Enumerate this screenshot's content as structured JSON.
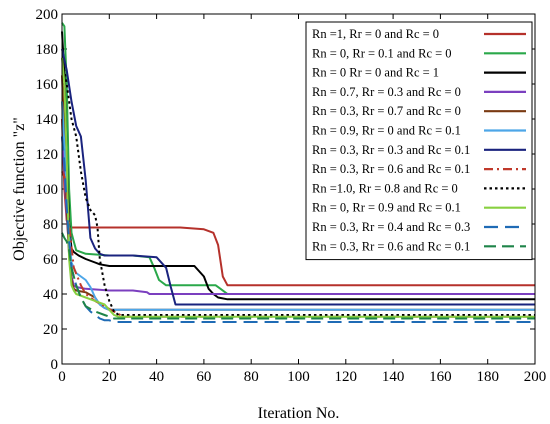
{
  "chart_data": {
    "type": "line",
    "xlabel": "Iteration No.",
    "ylabel": "Objective function \"z\"",
    "xlim": [
      0,
      200
    ],
    "ylim": [
      0,
      200
    ],
    "xticks": [
      0,
      20,
      40,
      60,
      80,
      100,
      120,
      140,
      160,
      180,
      200
    ],
    "yticks": [
      0,
      20,
      40,
      60,
      80,
      100,
      120,
      140,
      160,
      180,
      200
    ],
    "grid": false,
    "legend_position": "top-right",
    "series": [
      {
        "name": "Rn =1, Rr = 0 and Rc = 0",
        "color": "#b5312b",
        "dash": "solid",
        "x": [
          0,
          1,
          2,
          3,
          4,
          6,
          10,
          30,
          50,
          60,
          64,
          66,
          68,
          70,
          80,
          200
        ],
        "y": [
          140,
          100,
          82,
          79,
          78,
          78,
          78,
          78,
          78,
          77,
          75,
          68,
          50,
          45,
          45,
          45
        ]
      },
      {
        "name": "Rn = 0, Rr = 0.1 and Rc = 0",
        "color": "#2aa84a",
        "dash": "solid",
        "x": [
          0,
          1,
          2,
          3,
          4,
          5,
          6,
          10,
          20,
          30,
          37,
          39,
          41,
          44,
          65,
          67,
          69,
          70,
          80,
          200
        ],
        "y": [
          195,
          193,
          160,
          100,
          75,
          70,
          65,
          63,
          62,
          62,
          61,
          55,
          48,
          45,
          45,
          43,
          41,
          40,
          40,
          40
        ]
      },
      {
        "name": "Rn = 0 Rr = 0 and Rc = 1",
        "color": "#000000",
        "dash": "solid",
        "x": [
          0,
          1,
          2,
          3,
          4,
          5,
          7,
          10,
          14,
          16,
          20,
          40,
          56,
          60,
          62,
          64,
          66,
          70,
          80,
          200
        ],
        "y": [
          190,
          165,
          120,
          80,
          66,
          64,
          62,
          60,
          58,
          57,
          56,
          56,
          56,
          50,
          43,
          40,
          38,
          37,
          37,
          37
        ]
      },
      {
        "name": "Rn = 0.7, Rr = 0.3 and Rc = 0",
        "color": "#7b3fbf",
        "dash": "solid",
        "x": [
          0,
          1,
          2,
          3,
          4,
          5,
          6,
          10,
          20,
          30,
          36,
          37,
          40,
          50,
          200
        ],
        "y": [
          130,
          110,
          85,
          65,
          50,
          45,
          44,
          43,
          42,
          42,
          41,
          40,
          40,
          40,
          40
        ]
      },
      {
        "name": "Rn = 0.3, Rr = 0.7 and Rc = 0",
        "color": "#7a3a12",
        "dash": "solid",
        "x": [
          0,
          1,
          2,
          3,
          4,
          5,
          6,
          10,
          14,
          16,
          18,
          20,
          30,
          40,
          200
        ],
        "y": [
          165,
          130,
          90,
          62,
          48,
          43,
          42,
          41,
          38,
          34,
          32,
          31,
          31,
          31,
          31
        ]
      },
      {
        "name": "Rn = 0.9, Rr = 0 and Rc = 0.1",
        "color": "#4da6e8",
        "dash": "solid",
        "x": [
          0,
          1,
          2,
          3,
          4,
          6,
          8,
          10,
          12,
          14,
          16,
          18,
          20,
          30,
          200
        ],
        "y": [
          150,
          125,
          100,
          75,
          58,
          52,
          50,
          48,
          44,
          38,
          34,
          32,
          31,
          31,
          31
        ]
      },
      {
        "name": "Rn = 0.3, Rr = 0.3 and Rc = 0.1",
        "color": "#1a237e",
        "dash": "solid",
        "x": [
          0,
          2,
          4,
          6,
          8,
          10,
          12,
          14,
          16,
          18,
          20,
          30,
          40,
          44,
          46,
          48,
          60,
          200
        ],
        "y": [
          180,
          168,
          150,
          136,
          130,
          105,
          72,
          66,
          63,
          62,
          62,
          62,
          61,
          55,
          44,
          34,
          34,
          34
        ]
      },
      {
        "name": "Rn = 0.3, Rr = 0.6 and Rc = 0.1",
        "color": "#c0392b",
        "dash": "dashdot",
        "x": [
          0,
          1,
          2,
          3,
          5,
          8,
          10,
          14,
          18,
          22,
          26,
          40,
          200
        ],
        "y": [
          110,
          107,
          100,
          80,
          55,
          45,
          40,
          36,
          33,
          30,
          27,
          27,
          27
        ]
      },
      {
        "name": "Rn =1.0, Rr = 0.8 and Rc = 0",
        "color": "#000000",
        "dash": "dot",
        "x": [
          0,
          2,
          4,
          6,
          8,
          10,
          12,
          14,
          15,
          16,
          18,
          20,
          22,
          24,
          30,
          200
        ],
        "y": [
          175,
          160,
          140,
          130,
          110,
          95,
          88,
          85,
          78,
          60,
          45,
          36,
          30,
          28,
          28,
          28
        ]
      },
      {
        "name": "Rn = 0, Rr = 0.9 and Rc = 0.1",
        "color": "#88d040",
        "dash": "solid",
        "x": [
          0,
          1,
          2,
          3,
          4,
          5,
          6,
          10,
          14,
          18,
          20,
          22,
          24,
          30,
          200
        ],
        "y": [
          175,
          160,
          120,
          60,
          45,
          42,
          40,
          38,
          36,
          34,
          31,
          28,
          27,
          27,
          27
        ]
      },
      {
        "name": "Rn = 0.3, Rr = 0.4 and Rc = 0.3",
        "color": "#1f6bb5",
        "dash": "longdash",
        "x": [
          0,
          1,
          2,
          3,
          4,
          6,
          8,
          10,
          12,
          14,
          16,
          18,
          20,
          22,
          30,
          200
        ],
        "y": [
          130,
          115,
          90,
          70,
          55,
          45,
          38,
          33,
          30,
          28,
          26,
          25,
          25,
          24,
          24,
          24
        ]
      },
      {
        "name": "Rn = 0.3, Rr = 0.6 and Rc = 0.1",
        "color": "#1e8449",
        "dash": "dash",
        "x": [
          0,
          1,
          2,
          3,
          4,
          6,
          8,
          10,
          14,
          18,
          22,
          30,
          200
        ],
        "y": [
          75,
          72,
          70,
          65,
          55,
          45,
          38,
          33,
          30,
          28,
          26,
          26,
          26
        ]
      }
    ]
  }
}
